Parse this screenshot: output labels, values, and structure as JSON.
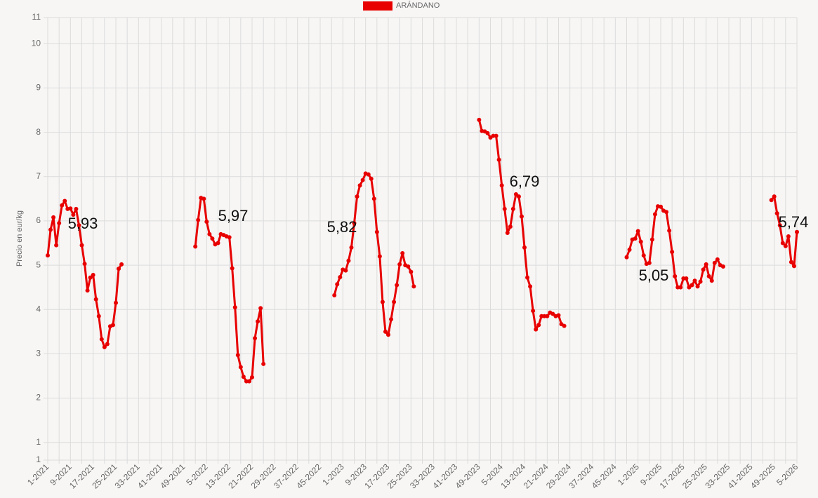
{
  "chart_data": {
    "type": "line",
    "ylabel": "Precio en eur/kg",
    "legend": "top",
    "grid": true,
    "ylim": [
      0.6,
      10.59
    ],
    "yticks": [
      {
        "value": 0.6,
        "label": "1"
      },
      1,
      2,
      3,
      4,
      5,
      6,
      7,
      8,
      9,
      10,
      {
        "value": 10.59,
        "label": "11"
      }
    ],
    "categories": [
      "1-2021",
      null,
      null,
      null,
      null,
      null,
      null,
      null,
      "9-2021",
      null,
      null,
      null,
      null,
      null,
      null,
      null,
      "17-2021",
      null,
      null,
      null,
      null,
      null,
      null,
      null,
      "25-2021",
      null,
      null,
      null,
      null,
      null,
      null,
      null,
      "33-2021",
      null,
      null,
      null,
      null,
      null,
      null,
      null,
      "41-2021",
      null,
      null,
      null,
      null,
      null,
      null,
      null,
      "49-2021",
      null,
      null,
      null,
      null,
      null,
      null,
      null,
      "5-2022",
      null,
      null,
      null,
      null,
      null,
      null,
      null,
      "13-2022",
      null,
      null,
      null,
      null,
      null,
      null,
      null,
      "21-2022",
      null,
      null,
      null,
      null,
      null,
      null,
      null,
      "29-2022",
      null,
      null,
      null,
      null,
      null,
      null,
      null,
      "37-2022",
      null,
      null,
      null,
      null,
      null,
      null,
      null,
      "45-2022",
      null,
      null,
      null,
      null,
      null,
      null,
      null,
      "1-2023",
      null,
      null,
      null,
      null,
      null,
      null,
      null,
      "9-2023",
      null,
      null,
      null,
      null,
      null,
      null,
      null,
      "17-2023",
      null,
      null,
      null,
      null,
      null,
      null,
      null,
      "25-2023",
      null,
      null,
      null,
      null,
      null,
      null,
      null,
      "33-2023",
      null,
      null,
      null,
      null,
      null,
      null,
      null,
      "41-2023",
      null,
      null,
      null,
      null,
      null,
      null,
      null,
      "49-2023",
      null,
      null,
      null,
      null,
      null,
      null,
      null,
      "5-2024",
      null,
      null,
      null,
      null,
      null,
      null,
      null,
      "13-2024",
      null,
      null,
      null,
      null,
      null,
      null,
      null,
      "21-2024",
      null,
      null,
      null,
      null,
      null,
      null,
      null,
      "29-2024",
      null,
      null,
      null,
      null,
      null,
      null,
      null,
      "37-2024",
      null,
      null,
      null,
      null,
      null,
      null,
      null,
      "45-2024",
      null,
      null,
      null,
      null,
      null,
      null,
      null,
      "1-2025",
      null,
      null,
      null,
      null,
      null,
      null,
      null,
      "9-2025",
      null,
      null,
      null,
      null,
      null,
      null,
      null,
      "17-2025",
      null,
      null,
      null,
      null,
      null,
      null,
      null,
      "25-2025",
      null,
      null,
      null,
      null,
      null,
      null,
      null,
      "33-2025",
      null,
      null,
      null,
      null,
      null,
      null,
      null,
      "41-2025",
      null,
      null,
      null,
      null,
      null,
      null,
      null,
      "49-2025",
      null,
      null,
      null,
      null,
      null,
      null,
      null,
      "5-2026"
    ],
    "series": [
      {
        "name": "ARÁNDANO",
        "color": "#e80000",
        "values": [
          5.22,
          5.8,
          6.08,
          5.45,
          5.95,
          6.35,
          6.45,
          6.27,
          6.28,
          6.14,
          6.27,
          5.9,
          5.45,
          5.03,
          4.43,
          4.72,
          4.78,
          4.23,
          3.85,
          3.33,
          3.15,
          3.22,
          3.62,
          3.65,
          4.15,
          4.92,
          5.02,
          null,
          null,
          null,
          null,
          null,
          null,
          null,
          null,
          null,
          null,
          null,
          null,
          null,
          null,
          null,
          null,
          null,
          null,
          null,
          null,
          null,
          null,
          null,
          null,
          null,
          5.42,
          6.02,
          6.52,
          6.5,
          5.98,
          5.7,
          5.6,
          5.47,
          5.5,
          5.7,
          5.68,
          5.65,
          5.63,
          4.93,
          4.05,
          2.97,
          2.7,
          2.48,
          2.38,
          2.38,
          2.47,
          3.35,
          3.73,
          4.03,
          2.77,
          null,
          null,
          null,
          null,
          null,
          null,
          null,
          null,
          null,
          null,
          null,
          null,
          null,
          null,
          null,
          null,
          null,
          null,
          null,
          null,
          null,
          null,
          null,
          null,
          4.32,
          4.57,
          4.73,
          4.9,
          4.88,
          5.1,
          5.4,
          5.95,
          6.55,
          6.8,
          6.92,
          7.07,
          7.05,
          6.95,
          6.5,
          5.75,
          5.2,
          4.17,
          3.5,
          3.43,
          3.78,
          4.17,
          4.55,
          5.02,
          5.27,
          5.0,
          4.97,
          4.85,
          4.52,
          null,
          null,
          null,
          null,
          null,
          null,
          null,
          null,
          null,
          null,
          null,
          null,
          null,
          null,
          null,
          null,
          null,
          null,
          null,
          null,
          null,
          null,
          8.28,
          8.03,
          8.02,
          7.98,
          7.88,
          7.92,
          7.92,
          7.38,
          6.8,
          6.27,
          5.73,
          5.87,
          6.27,
          6.6,
          6.55,
          6.1,
          5.4,
          4.72,
          4.52,
          3.97,
          3.55,
          3.65,
          3.85,
          3.85,
          3.85,
          3.93,
          3.9,
          3.85,
          3.87,
          3.67,
          3.63,
          null,
          null,
          null,
          null,
          null,
          null,
          null,
          null,
          null,
          null,
          null,
          null,
          null,
          null,
          null,
          null,
          null,
          null,
          null,
          null,
          null,
          5.18,
          5.35,
          5.58,
          5.6,
          5.77,
          5.53,
          5.22,
          5.03,
          5.05,
          5.58,
          6.15,
          6.33,
          6.32,
          6.23,
          6.2,
          5.78,
          5.3,
          4.75,
          4.5,
          4.5,
          4.7,
          4.7,
          4.5,
          4.55,
          4.65,
          4.52,
          4.63,
          4.9,
          5.02,
          4.75,
          4.65,
          5.05,
          5.13,
          5.0,
          4.97,
          null,
          null,
          null,
          null,
          null,
          null,
          null,
          null,
          null,
          null,
          null,
          null,
          null,
          null,
          null,
          null,
          6.47,
          6.55,
          6.17,
          5.9,
          5.5,
          5.43,
          5.65,
          5.07,
          4.98,
          5.75
        ]
      }
    ],
    "annotations": [
      {
        "label": "5,93"
      },
      {
        "label": "5,97"
      },
      {
        "label": "5,82"
      },
      {
        "label": "6,79"
      },
      {
        "label": "5,05"
      },
      {
        "label": "5,74"
      }
    ]
  }
}
